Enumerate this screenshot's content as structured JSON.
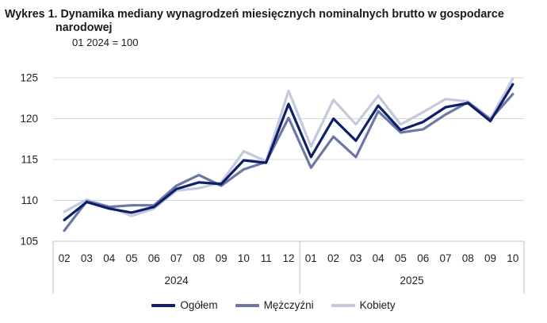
{
  "title_line1": "Wykres 1. Dynamika mediany wynagrodzeń miesięcznych nominalnych brutto w gospodarce",
  "title_line2": "narodowej",
  "subtitle": "01 2024 = 100",
  "chart_data": {
    "type": "line",
    "title": "Wykres 1. Dynamika mediany wynagrodzeń miesięcznych nominalnych brutto w gospodarce narodowej",
    "subtitle": "01 2024 = 100",
    "categories": [
      "02",
      "03",
      "04",
      "05",
      "06",
      "07",
      "08",
      "09",
      "10",
      "11",
      "12",
      "01",
      "02",
      "03",
      "04",
      "05",
      "06",
      "07",
      "08",
      "09",
      "10"
    ],
    "groups": [
      {
        "label": "2024",
        "count": 11
      },
      {
        "label": "2025",
        "count": 10
      }
    ],
    "ylim": [
      105,
      125
    ],
    "yticks": [
      105,
      110,
      115,
      120,
      125
    ],
    "grid": true,
    "legend_position": "bottom",
    "series": [
      {
        "name": "Ogółem",
        "color": "#0d1f6b",
        "values": [
          107.6,
          109.8,
          109.0,
          108.5,
          109.2,
          111.4,
          112.2,
          112.0,
          114.9,
          114.6,
          121.8,
          115.3,
          120.0,
          117.3,
          121.6,
          118.6,
          119.6,
          121.4,
          121.9,
          119.7,
          124.2
        ]
      },
      {
        "name": "Mężczyźni",
        "color": "#6c77a6",
        "values": [
          106.3,
          109.9,
          109.2,
          109.4,
          109.4,
          111.8,
          113.1,
          111.8,
          113.8,
          114.7,
          120.1,
          114.0,
          117.8,
          115.3,
          120.9,
          118.3,
          118.7,
          120.5,
          122.0,
          119.9,
          123.0
        ]
      },
      {
        "name": "Kobiety",
        "color": "#c5c9dc",
        "values": [
          108.6,
          110.1,
          109.2,
          108.1,
          109.0,
          111.2,
          111.5,
          112.2,
          116.0,
          114.8,
          123.4,
          116.6,
          122.3,
          119.3,
          122.8,
          119.3,
          120.8,
          122.4,
          122.1,
          120.0,
          124.9
        ]
      }
    ]
  }
}
